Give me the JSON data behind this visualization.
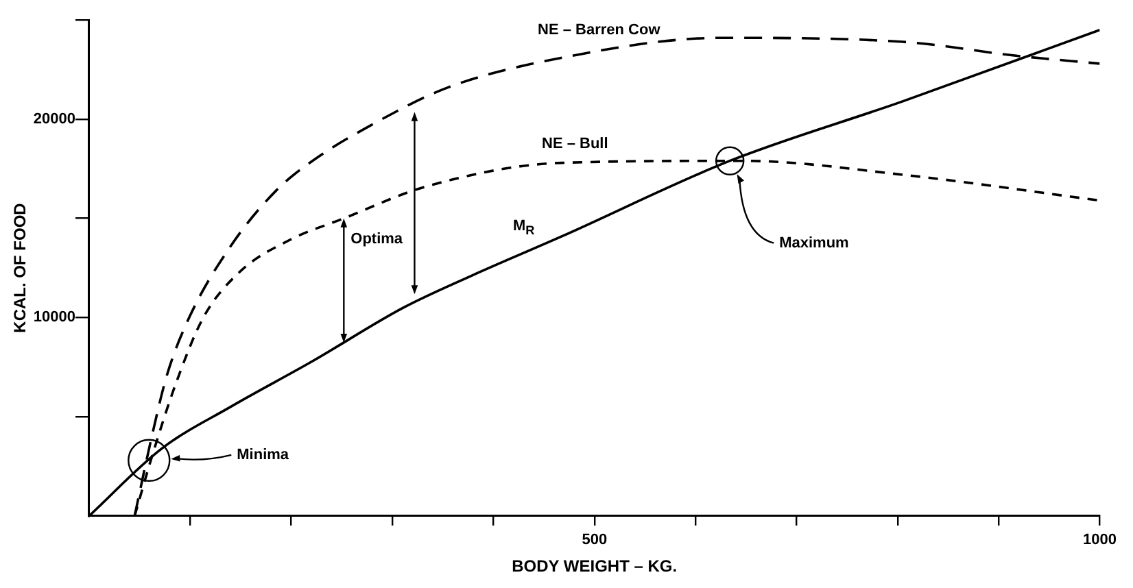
{
  "chart_data": {
    "type": "line",
    "xlabel": "BODY WEIGHT – KG.",
    "ylabel": "KCAL. OF FOOD",
    "xlim": [
      0,
      1000
    ],
    "ylim": [
      0,
      25000
    ],
    "xticks": [
      {
        "value": 100,
        "label": null
      },
      {
        "value": 200,
        "label": null
      },
      {
        "value": 300,
        "label": null
      },
      {
        "value": 400,
        "label": null
      },
      500,
      {
        "value": 600,
        "label": null
      },
      {
        "value": 700,
        "label": null
      },
      {
        "value": 800,
        "label": null
      },
      {
        "value": 900,
        "label": null
      },
      1000
    ],
    "yticks": [
      {
        "value": 5000,
        "label": null
      },
      10000,
      {
        "value": 15000,
        "label": null
      },
      20000,
      {
        "value": 25000,
        "label": null
      }
    ],
    "grid": false,
    "legend": false,
    "marker": "none",
    "series": [
      {
        "name": "NE – Barren Cow",
        "color": "#000000",
        "line_style": "dashed",
        "x": [
          45,
          62,
          77,
          99,
          140,
          185,
          221,
          279,
          355,
          468,
          625,
          805,
          917,
          1000
        ],
        "values": [
          0,
          4000,
          7100,
          10000,
          13600,
          16400,
          17900,
          19700,
          21600,
          23100,
          24100,
          23900,
          23200,
          22800
        ]
      },
      {
        "name": "NE – Bull",
        "color": "#000000",
        "line_style": "dashed",
        "x": [
          45,
          64,
          86,
          113,
          149,
          198,
          252,
          333,
          468,
          647,
          805,
          1000
        ],
        "values": [
          0,
          3300,
          6700,
          10000,
          12300,
          13900,
          15000,
          16600,
          17800,
          17900,
          17200,
          15900
        ]
      },
      {
        "name": "M$_{R}$",
        "color": "#000000",
        "line_style": "solid",
        "x": [
          0,
          72,
          140,
          221,
          311,
          378,
          468,
          634,
          805,
          1000
        ],
        "values": [
          0,
          3400,
          5500,
          7800,
          10500,
          12100,
          14100,
          17900,
          20900,
          24500
        ]
      }
    ],
    "annotations": [
      {
        "text": "Optima",
        "x": 252,
        "y": 15000
      },
      "Minima",
      "Maximum"
    ]
  }
}
